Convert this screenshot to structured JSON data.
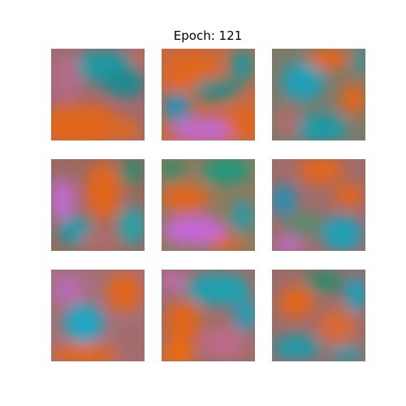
{
  "title": "Epoch: 121",
  "palette": {
    "orange": "#e0661c",
    "teal": "#1a9aa6",
    "green": "#2e8a6a",
    "magenta": "#c36bcf",
    "mauve": "#a06a7e"
  },
  "samples": [
    {
      "row": 1,
      "col": 1,
      "base": "#a06a6e"
    },
    {
      "row": 1,
      "col": 2,
      "base": "#c96a3a"
    },
    {
      "row": 1,
      "col": 3,
      "base": "#7a7a6e"
    },
    {
      "row": 2,
      "col": 1,
      "base": "#9a6a62"
    },
    {
      "row": 2,
      "col": 2,
      "base": "#8a7a60"
    },
    {
      "row": 2,
      "col": 3,
      "base": "#9a6e6a"
    },
    {
      "row": 3,
      "col": 1,
      "base": "#a47078"
    },
    {
      "row": 3,
      "col": 2,
      "base": "#a06e6a"
    },
    {
      "row": 3,
      "col": 3,
      "base": "#9e6c6a"
    }
  ]
}
